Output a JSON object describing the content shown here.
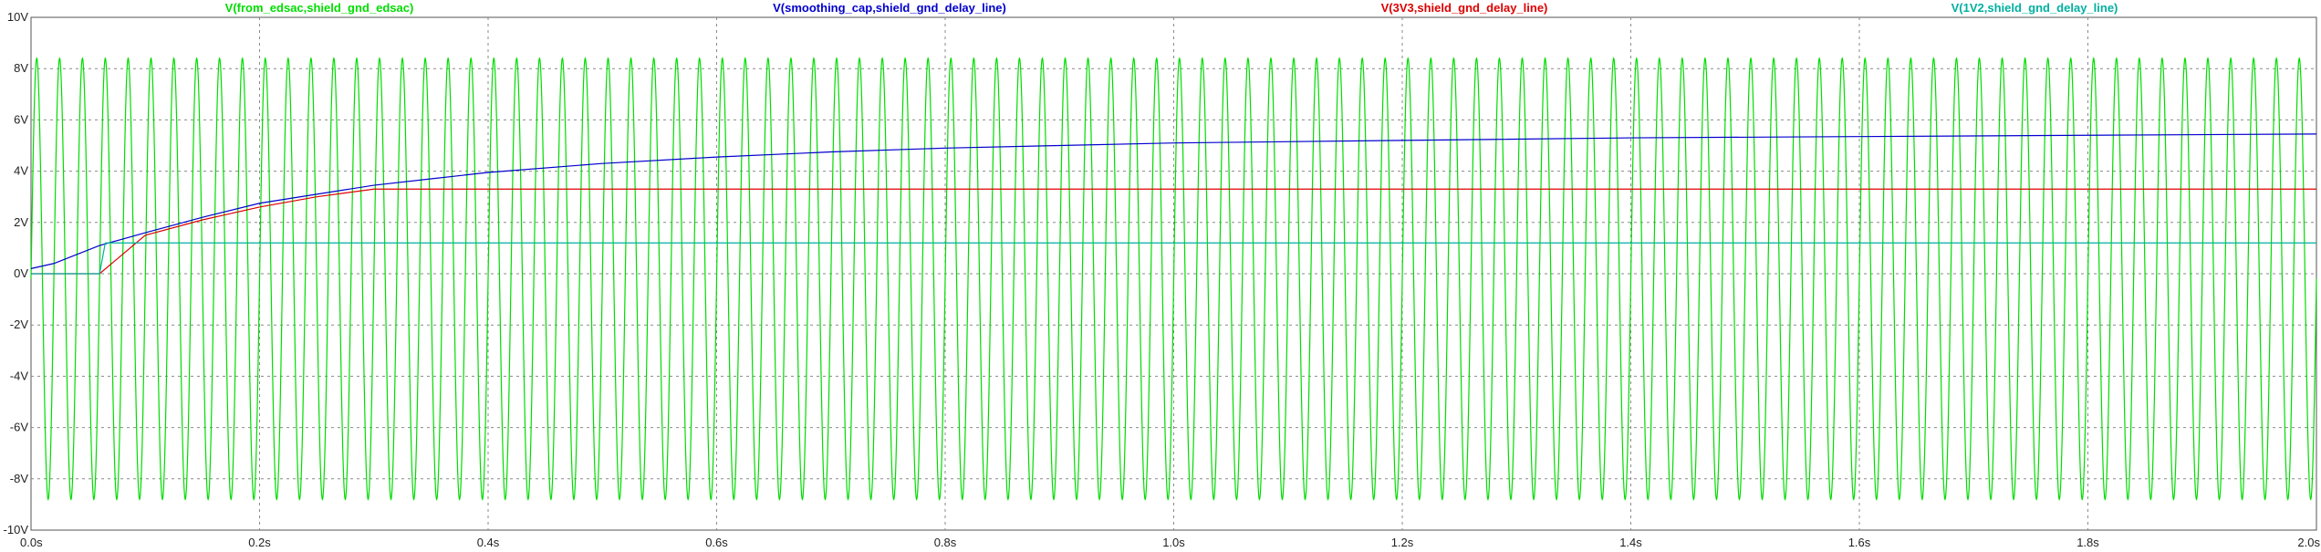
{
  "chart_data": {
    "type": "line",
    "xlim": [
      0,
      2.0
    ],
    "ylim": [
      -10,
      10
    ],
    "x_ticks": [
      "0.0s",
      "0.2s",
      "0.4s",
      "0.6s",
      "0.8s",
      "1.0s",
      "1.2s",
      "1.4s",
      "1.6s",
      "1.8s",
      "2.0s"
    ],
    "y_ticks": [
      "10V",
      "8V",
      "6V",
      "4V",
      "2V",
      "0V",
      "-2V",
      "-4V",
      "-6V",
      "-8V",
      "-10V"
    ],
    "grid": true,
    "legend_position": "top",
    "series": [
      {
        "name": "V(from_edsac,shield_gnd_edsac)",
        "color": "#00dd00",
        "kind": "sine",
        "amplitude": 8.6,
        "offset": -0.2,
        "frequency_hz": 50,
        "x_start": 0.0,
        "x_end": 2.0
      },
      {
        "name": "V(smoothing_cap,shield_gnd_delay_line)",
        "color": "#0000cc",
        "x": [
          0.0,
          0.02,
          0.06,
          0.1,
          0.15,
          0.2,
          0.25,
          0.3,
          0.35,
          0.4,
          0.5,
          0.6,
          0.7,
          0.8,
          0.9,
          1.0,
          1.2,
          1.4,
          1.6,
          1.8,
          2.0
        ],
        "y": [
          0.2,
          0.4,
          1.1,
          1.6,
          2.2,
          2.75,
          3.1,
          3.45,
          3.7,
          3.95,
          4.3,
          4.55,
          4.75,
          4.9,
          5.0,
          5.1,
          5.2,
          5.3,
          5.35,
          5.4,
          5.45
        ]
      },
      {
        "name": "V(3V3,shield_gnd_delay_line)",
        "color": "#dd0000",
        "x": [
          0.0,
          0.06,
          0.1,
          0.15,
          0.2,
          0.25,
          0.3,
          0.35,
          0.4,
          2.0
        ],
        "y": [
          0.0,
          0.0,
          1.5,
          2.1,
          2.6,
          3.0,
          3.3,
          3.3,
          3.3,
          3.3
        ]
      },
      {
        "name": "V(1V2,shield_gnd_delay_line)",
        "color": "#00b0a0",
        "x": [
          0.0,
          0.06,
          0.065,
          2.0
        ],
        "y": [
          0.0,
          0.0,
          1.2,
          1.2
        ]
      }
    ]
  }
}
